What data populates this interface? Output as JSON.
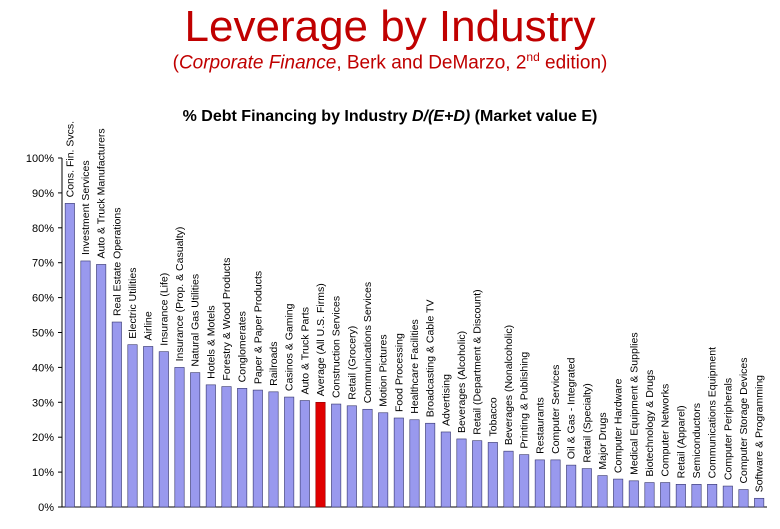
{
  "header": {
    "title": "Leverage by Industry",
    "subtitle_open": "(",
    "subtitle_book": "Corporate Finance",
    "subtitle_rest": ", Berk and DeMarzo, 2",
    "subtitle_sup": "nd",
    "subtitle_end": " edition)"
  },
  "chart_title": {
    "prefix": "% Debt Financing by Industry ",
    "formula": "D/(E+D)",
    "suffix": " (Market value E)"
  },
  "colors": {
    "bar": "#9999ee",
    "highlight": "#e00000",
    "title": "#c00000"
  },
  "chart_data": {
    "type": "bar",
    "title": "% Debt Financing by Industry D/(E+D) (Market value E)",
    "ylim": [
      0,
      100
    ],
    "yticks": [
      "0%",
      "10%",
      "20%",
      "30%",
      "40%",
      "50%",
      "60%",
      "70%",
      "80%",
      "90%",
      "100%"
    ],
    "highlight_category": "Average (All U.S. Firms)",
    "categories": [
      "Cons. Fin. Svcs.",
      "Investment Services",
      "Auto & Truck Manufacturers",
      "Real Estate Operations",
      "Electric Utilities",
      "Airline",
      "Insurance (Life)",
      "Insurance (Prop. & Casualty)",
      "Natural Gas Utilities",
      "Hotels & Motels",
      "Forestry & Wood Products",
      "Conglomerates",
      "Paper & Paper Products",
      "Railroads",
      "Casinos & Gaming",
      "Auto & Truck Parts",
      "Average (All U.S. Firms)",
      "Construction Services",
      "Retail (Grocery)",
      "Communications Services",
      "Motion Pictures",
      "Food Processing",
      "Healthcare Facilities",
      "Broadcasting & Cable TV",
      "Advertising",
      "Beverages (Alcoholic)",
      "Retail (Department & Discount)",
      "Tobacco",
      "Beverages (Nonalcoholic)",
      "Printing & Publishing",
      "Restaurants",
      "Computer Services",
      "Oil & Gas - Integrated",
      "Retail (Specialty)",
      "Major Drugs",
      "Computer Hardware",
      "Medical Equipment & Supplies",
      "Biotechnology & Drugs",
      "Computer Networks",
      "Retail (Apparel)",
      "Semiconductors",
      "Communications Equipment",
      "Computer Peripherals",
      "Computer Storage Devices",
      "Software & Programming"
    ],
    "values": [
      87,
      70.5,
      69.5,
      53,
      46.5,
      46,
      44.5,
      40,
      38.5,
      35,
      34.5,
      34,
      33.5,
      33,
      31.5,
      30.5,
      30,
      29.5,
      29,
      28,
      27,
      25.5,
      25,
      24,
      21.5,
      19.5,
      19,
      18.5,
      16,
      15,
      13.5,
      13.5,
      12,
      11,
      9,
      8,
      7.5,
      7,
      7,
      6.5,
      6.5,
      6.5,
      6,
      5,
      2.5
    ]
  }
}
